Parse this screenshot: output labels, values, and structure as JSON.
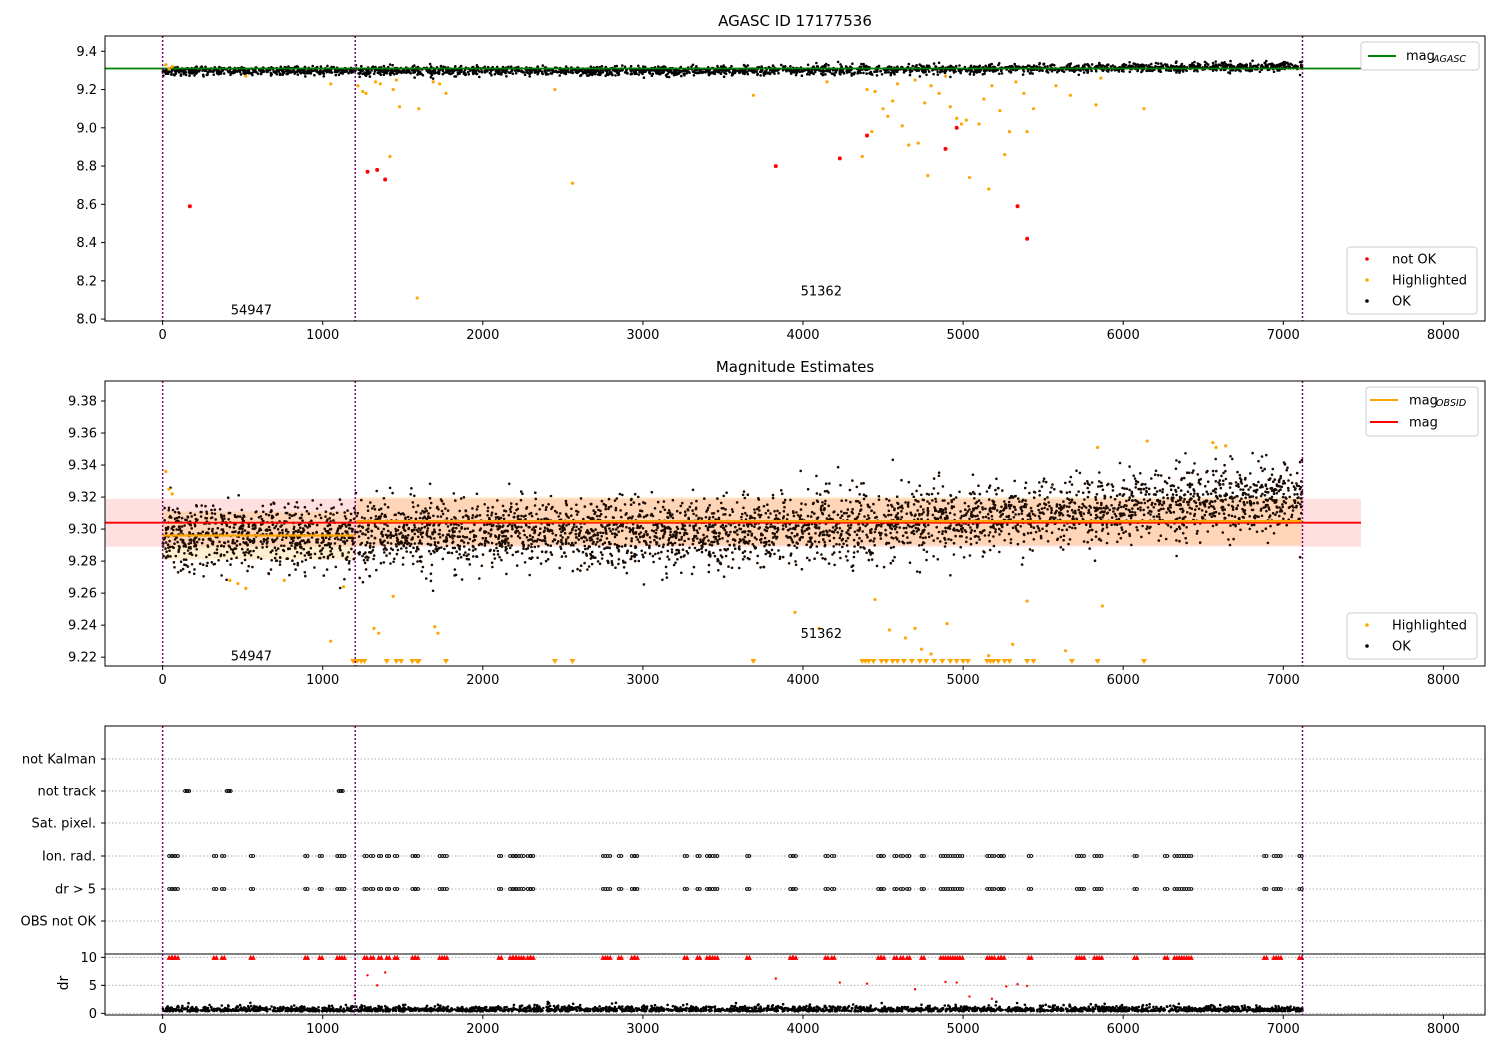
{
  "figure": {
    "title": "AGASC ID 17177536"
  },
  "chart_data": [
    {
      "type": "scatter",
      "title": "AGASC ID 17177536",
      "xlim": [
        -360,
        8260
      ],
      "ylim": [
        7.99,
        9.48
      ],
      "xticks": [
        0,
        1000,
        2000,
        3000,
        4000,
        5000,
        6000,
        7000,
        8000
      ],
      "yticks": [
        8.0,
        8.2,
        8.4,
        8.6,
        8.8,
        9.0,
        9.2,
        9.4
      ],
      "ytick_labels": [
        "8.0",
        "8.2",
        "8.4",
        "8.6",
        "8.8",
        "9.0",
        "9.2",
        "9.4"
      ],
      "vlines": [
        0,
        1203,
        7120
      ],
      "hline_mag_agasc": 9.31,
      "obsid_labels": [
        {
          "text": "54947",
          "x": 600,
          "y": 8.05
        },
        {
          "text": "51362",
          "x": 4160,
          "y": 8.15
        }
      ],
      "legend_upper": {
        "label_main": "mag",
        "label_sub": "AGASC",
        "color": "#008000"
      },
      "legend_lower": [
        {
          "label": "not OK",
          "color": "#ff0000"
        },
        {
          "label": "Highlighted",
          "color": "#ffa500"
        },
        {
          "label": "OK",
          "color": "#000000"
        }
      ],
      "series": [
        {
          "name": "not OK",
          "color": "#ff0000",
          "x": [
            170,
            1280,
            1340,
            1390,
            3830,
            4230,
            4400,
            4890,
            4960,
            5340,
            5400
          ],
          "y": [
            8.59,
            8.77,
            8.78,
            8.73,
            8.8,
            8.84,
            8.96,
            8.89,
            9.0,
            8.59,
            8.42
          ]
        },
        {
          "name": "Highlighted",
          "color": "#ffa500",
          "x": [
            20,
            40,
            60,
            520,
            1050,
            1220,
            1250,
            1270,
            1330,
            1360,
            1420,
            1440,
            1460,
            1480,
            1590,
            1600,
            1690,
            1730,
            1770,
            2450,
            2560,
            3690,
            4150,
            4370,
            4400,
            4430,
            4450,
            4500,
            4530,
            4560,
            4590,
            4620,
            4660,
            4700,
            4720,
            4760,
            4780,
            4800,
            4850,
            4890,
            4920,
            4960,
            4990,
            5020,
            5040,
            5100,
            5130,
            5160,
            5180,
            5230,
            5260,
            5290,
            5330,
            5380,
            5400,
            5440,
            5580,
            5670,
            5830,
            5860,
            6130
          ],
          "y": [
            9.33,
            9.31,
            9.32,
            9.27,
            9.23,
            9.22,
            9.19,
            9.18,
            9.24,
            9.23,
            8.85,
            9.2,
            9.25,
            9.11,
            8.11,
            9.1,
            9.24,
            9.23,
            9.18,
            9.2,
            8.71,
            9.17,
            9.24,
            8.85,
            9.2,
            8.98,
            9.19,
            9.1,
            9.06,
            9.14,
            9.23,
            9.01,
            8.91,
            9.25,
            8.92,
            9.13,
            8.75,
            9.22,
            9.18,
            9.27,
            9.11,
            9.05,
            9.02,
            9.04,
            8.74,
            9.02,
            9.15,
            8.68,
            9.22,
            9.09,
            8.86,
            8.98,
            9.24,
            9.18,
            8.98,
            9.1,
            9.22,
            9.17,
            9.12,
            9.26,
            9.1
          ]
        }
      ]
    },
    {
      "type": "scatter",
      "title": "Magnitude Estimates",
      "xlim": [
        -360,
        8260
      ],
      "ylim": [
        9.2145,
        9.3925
      ],
      "xticks": [
        0,
        1000,
        2000,
        3000,
        4000,
        5000,
        6000,
        7000,
        8000
      ],
      "yticks": [
        9.22,
        9.24,
        9.26,
        9.28,
        9.3,
        9.32,
        9.34,
        9.36,
        9.38
      ],
      "ytick_labels": [
        "9.22",
        "9.24",
        "9.26",
        "9.28",
        "9.30",
        "9.32",
        "9.34",
        "9.36",
        "9.38"
      ],
      "vlines": [
        0,
        1203,
        7120
      ],
      "mag": 9.304,
      "mag_band": [
        9.289,
        9.319
      ],
      "mag_obsid": [
        {
          "x": [
            0,
            1203
          ],
          "value": 9.296,
          "band": [
            9.281,
            9.311
          ]
        },
        {
          "x": [
            1203,
            7120
          ],
          "value": 9.305,
          "band": [
            9.29,
            9.32
          ]
        }
      ],
      "obsid_labels": [
        {
          "text": "54947",
          "x": 600,
          "y": 9.221
        },
        {
          "text": "51362",
          "x": 4160,
          "y": 9.235
        }
      ],
      "legend_upper": [
        {
          "label_main": "mag",
          "label_sub": "OBSID",
          "color": "#ffa500"
        },
        {
          "label_main": "mag",
          "label_sub": "",
          "color": "#ff0000"
        }
      ],
      "legend_lower": [
        {
          "label": "Highlighted",
          "color": "#ffa500"
        },
        {
          "label": "OK",
          "color": "#000000"
        }
      ],
      "highlighted": {
        "x": [
          20,
          40,
          60,
          420,
          470,
          520,
          760,
          1050,
          1130,
          1320,
          1350,
          1440,
          1700,
          1720,
          3950,
          4100,
          4450,
          4540,
          4640,
          4700,
          4740,
          4800,
          4900,
          5160,
          5310,
          5400,
          5640,
          5840,
          5870,
          6150,
          6560,
          6580,
          6640
        ],
        "y": [
          9.336,
          9.325,
          9.322,
          9.268,
          9.266,
          9.263,
          9.268,
          9.23,
          9.264,
          9.238,
          9.235,
          9.258,
          9.239,
          9.235,
          9.248,
          9.238,
          9.256,
          9.237,
          9.232,
          9.238,
          9.225,
          9.222,
          9.241,
          9.221,
          9.228,
          9.255,
          9.224,
          9.351,
          9.252,
          9.355,
          9.354,
          9.351,
          9.352
        ]
      },
      "offscale_x": [
        1190,
        1215,
        1240,
        1260,
        1400,
        1460,
        1490,
        1560,
        1590,
        1600,
        1770,
        2450,
        2560,
        3690,
        4370,
        4390,
        4410,
        4440,
        4490,
        4520,
        4560,
        4590,
        4630,
        4680,
        4730,
        4770,
        4820,
        4870,
        4920,
        4960,
        5000,
        5030,
        5150,
        5170,
        5190,
        5220,
        5260,
        5290,
        5400,
        5440,
        5680,
        5840,
        6130
      ]
    },
    {
      "type": "scatter",
      "title": "",
      "xlim": [
        -360,
        8260
      ],
      "categories": [
        "not Kalman",
        "not track",
        "Sat. pixel.",
        "Ion. rad.",
        "dr > 5",
        "OBS not OK"
      ],
      "vlines": [
        0,
        1203,
        7120
      ],
      "flags": {
        "not_track": [
          140,
          150,
          400,
          410,
          1100,
          1110
        ],
        "ion_rad": [
          40,
          60,
          80,
          320,
          370,
          550,
          890,
          980,
          1090,
          1120,
          1260,
          1300,
          1350,
          1400,
          1450,
          1560,
          1580,
          1730,
          1760,
          2100,
          2170,
          2190,
          2210,
          2240,
          2280,
          2300,
          2750,
          2780,
          2850,
          2930,
          2950,
          3260,
          3340,
          3400,
          3420,
          3450,
          3650,
          3920,
          3940,
          4140,
          4180,
          4470,
          4490,
          4570,
          4610,
          4650,
          4740,
          4860,
          4890,
          4920,
          4950,
          4980,
          5150,
          5180,
          5220,
          5240,
          5410,
          5710,
          5740,
          5820,
          5850,
          6070,
          6260,
          6320,
          6350,
          6380,
          6410,
          6880,
          6940,
          6970,
          7100
        ],
        "dr_gt_5": [
          40,
          60,
          80,
          320,
          370,
          550,
          890,
          980,
          1090,
          1120,
          1260,
          1300,
          1350,
          1400,
          1450,
          1560,
          1580,
          1730,
          1760,
          2100,
          2170,
          2190,
          2210,
          2240,
          2280,
          2300,
          2750,
          2780,
          2850,
          2930,
          2950,
          3260,
          3340,
          3400,
          3420,
          3450,
          3650,
          3920,
          3940,
          4140,
          4180,
          4470,
          4490,
          4570,
          4610,
          4650,
          4740,
          4860,
          4890,
          4920,
          4950,
          4980,
          5150,
          5180,
          5220,
          5240,
          5410,
          5710,
          5740,
          5820,
          5850,
          6070,
          6260,
          6320,
          6350,
          6380,
          6410,
          6880,
          6940,
          6970,
          7100
        ]
      }
    },
    {
      "type": "scatter",
      "title": "",
      "ylabel": "dr",
      "xlim": [
        -360,
        8260
      ],
      "ylim": [
        -0.3,
        10.6
      ],
      "xticks": [
        0,
        1000,
        2000,
        3000,
        4000,
        5000,
        6000,
        7000,
        8000
      ],
      "yticks": [
        0,
        5,
        10
      ],
      "ytick_labels": [
        "0",
        "5",
        "10"
      ],
      "vlines": [
        0,
        1203,
        7120
      ],
      "red_points": {
        "x": [
          1200,
          1280,
          1340,
          1390,
          3830,
          4230,
          4400,
          4700,
          4890,
          4960,
          5040,
          5180,
          5270,
          5340,
          5400
        ],
        "y": [
          3.2,
          6.8,
          5.0,
          7.3,
          6.2,
          5.5,
          5.3,
          4.3,
          5.6,
          5.5,
          3.0,
          2.6,
          4.8,
          5.2,
          4.9
        ]
      },
      "capped_x": [
        40,
        60,
        80,
        320,
        370,
        550,
        890,
        980,
        1090,
        1120,
        1260,
        1300,
        1350,
        1400,
        1450,
        1560,
        1580,
        1730,
        1760,
        2100,
        2170,
        2190,
        2210,
        2240,
        2280,
        2300,
        2750,
        2780,
        2850,
        2930,
        2950,
        3260,
        3340,
        3400,
        3420,
        3450,
        3650,
        3920,
        3940,
        4140,
        4180,
        4470,
        4490,
        4570,
        4610,
        4650,
        4740,
        4860,
        4890,
        4920,
        4950,
        4980,
        5150,
        5180,
        5220,
        5240,
        5410,
        5710,
        5740,
        5820,
        5850,
        6070,
        6260,
        6320,
        6350,
        6380,
        6410,
        6880,
        6940,
        6970,
        7100
      ],
      "capped_value": 10
    }
  ]
}
